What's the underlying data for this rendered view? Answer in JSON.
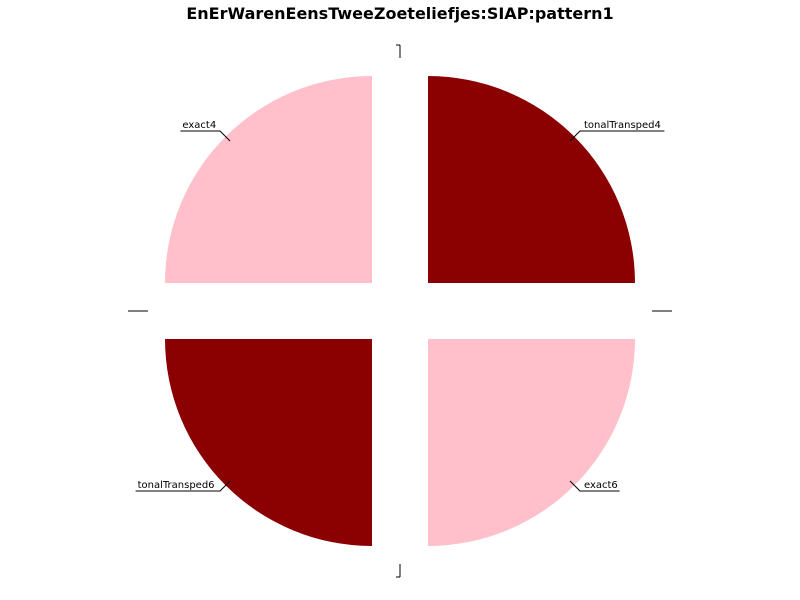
{
  "chart_data": {
    "type": "pie",
    "title": "EnErWarenEensTweeZoeteliefjes:SIAP:pattern1",
    "slices": [
      {
        "label": "exact4",
        "value": 25,
        "color": "#ffc0cb"
      },
      {
        "label": "tonalTransped4",
        "value": 25,
        "color": "#8b0000"
      },
      {
        "label": "exact6",
        "value": 25,
        "color": "#ffc0cb"
      },
      {
        "label": "tonalTransped6",
        "value": 25,
        "color": "#8b0000"
      }
    ],
    "exploded": true,
    "legend": "none"
  }
}
